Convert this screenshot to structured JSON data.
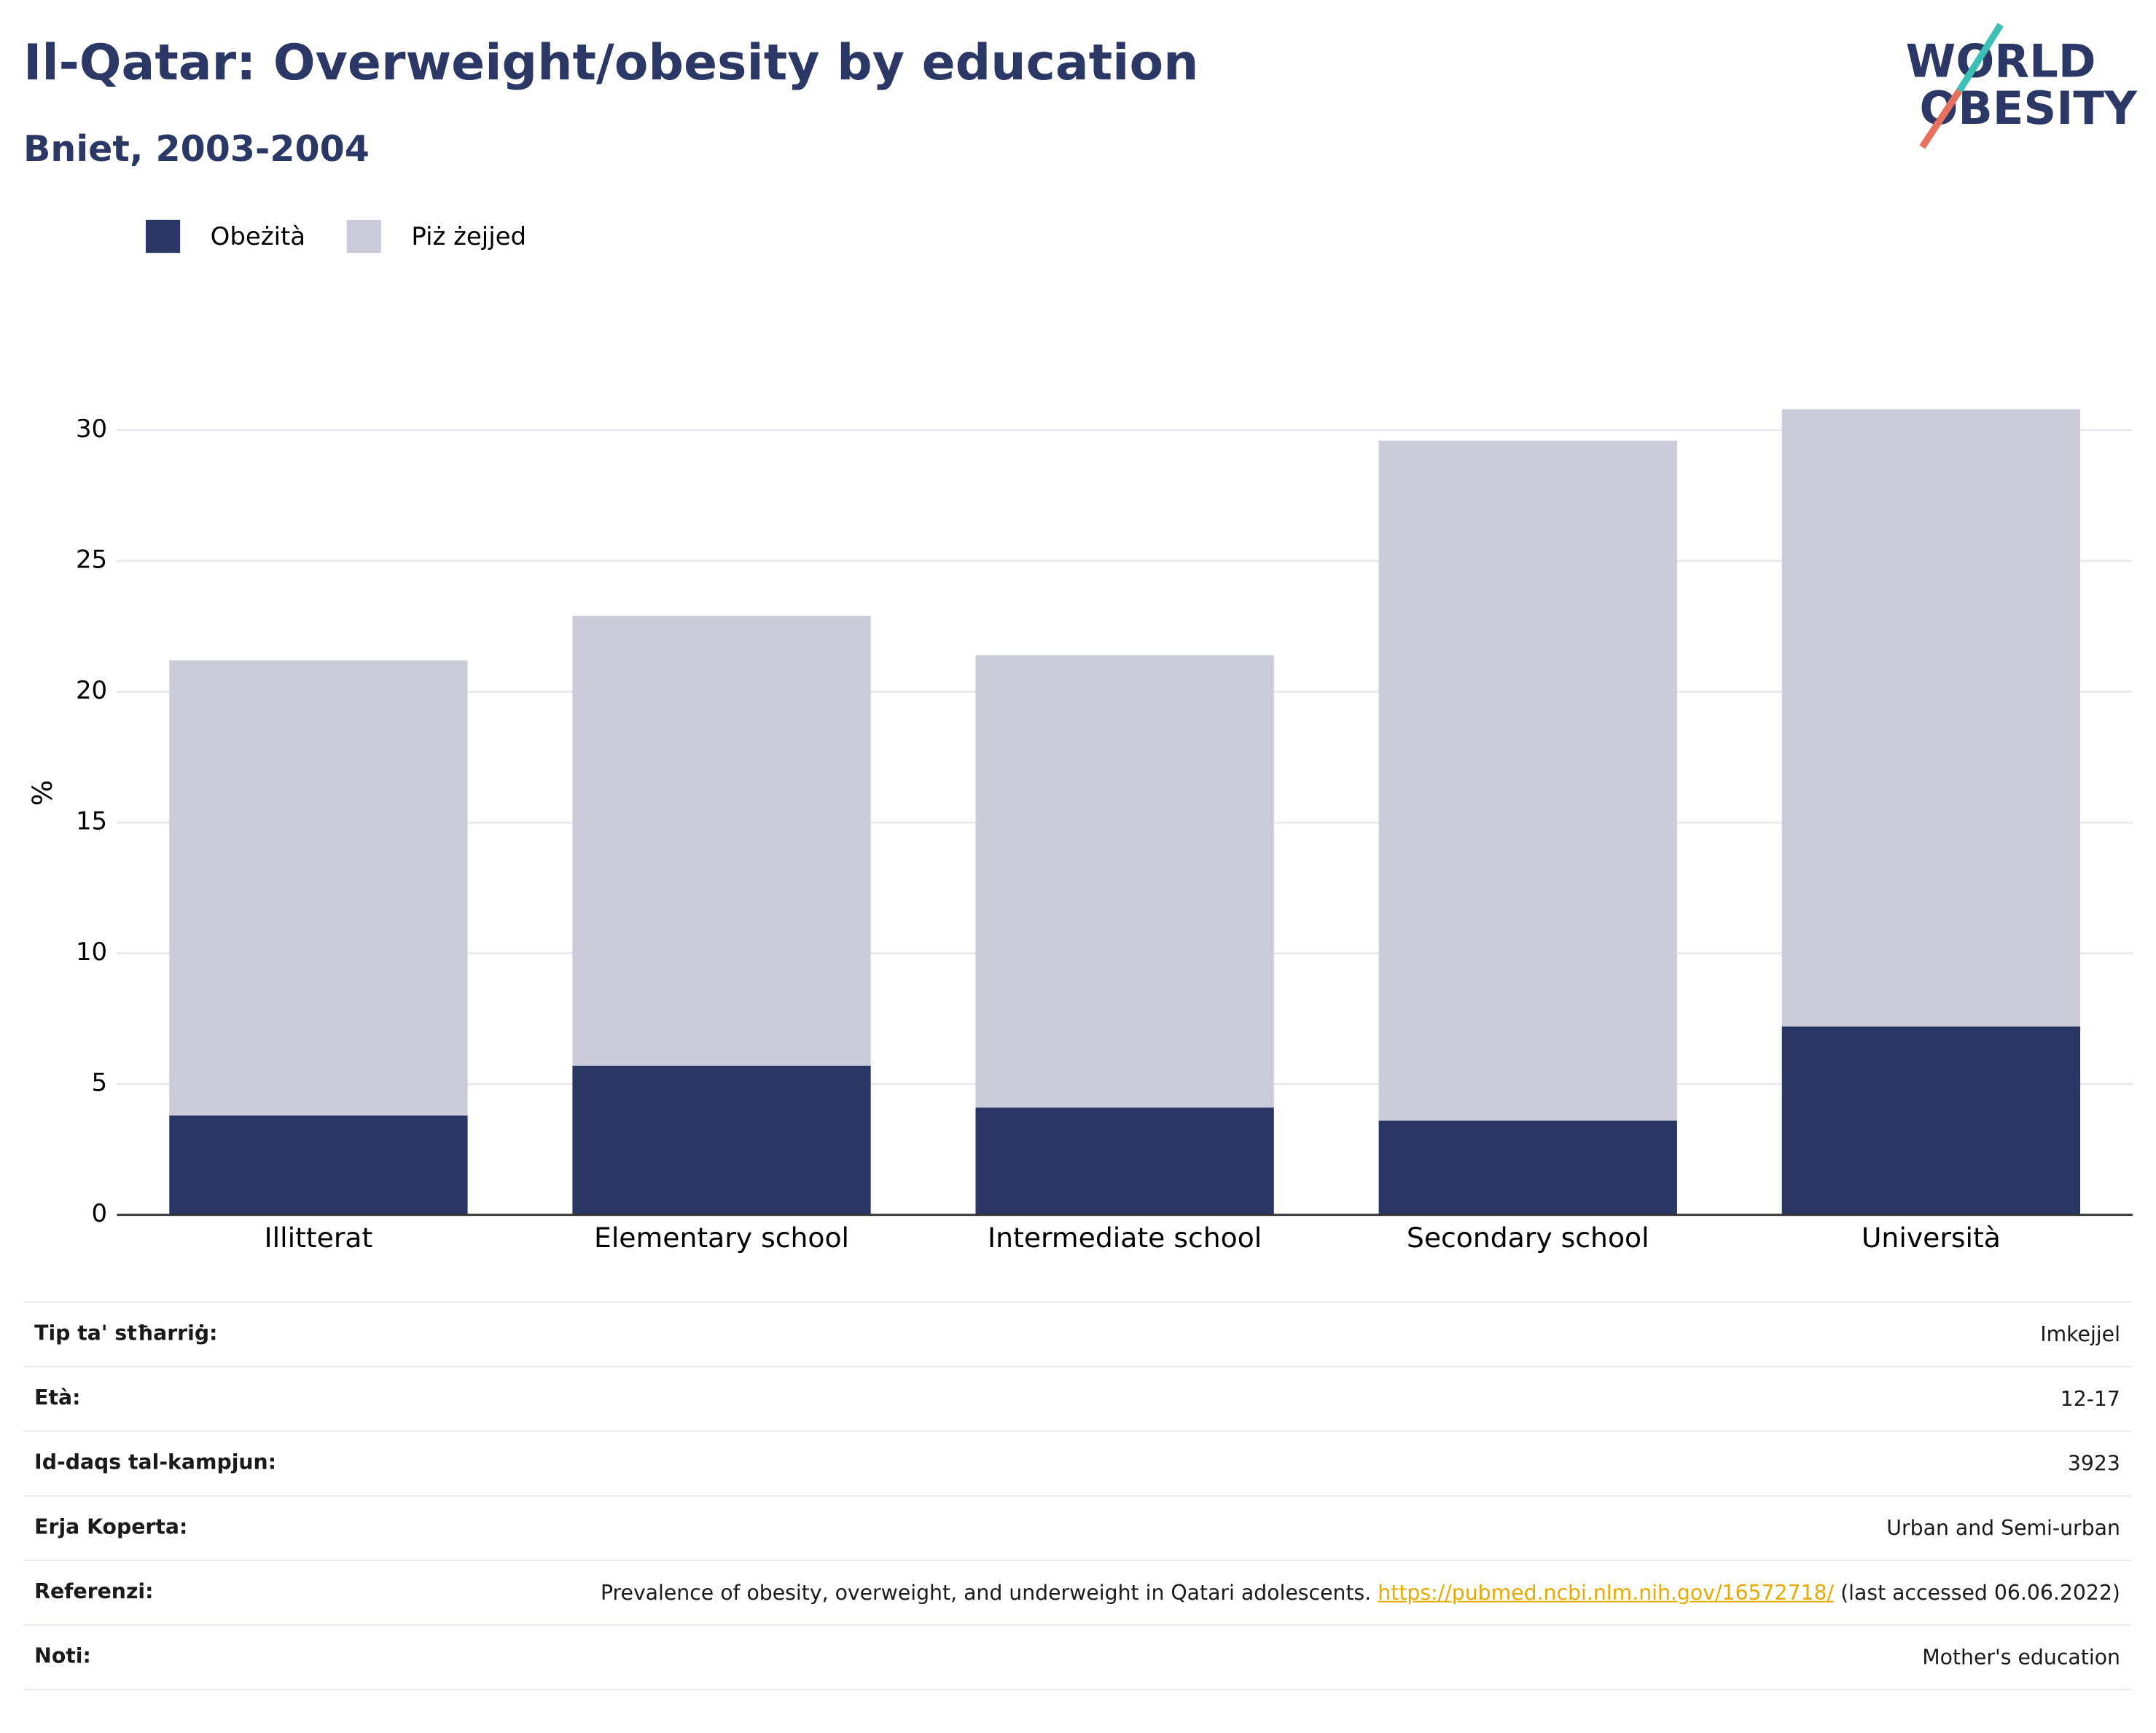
{
  "chart_data": {
    "type": "bar",
    "stacked": true,
    "title": "Il-Qatar: Overweight/obesity by education",
    "subtitle": "Bniet, 2003-2004",
    "ylabel": "%",
    "categories": [
      "Illitterat",
      "Elementary school",
      "Intermediate school",
      "Secondary school",
      "Università"
    ],
    "series": [
      {
        "name": "Obeżità",
        "color": "#2a3664",
        "values": [
          3.8,
          5.7,
          4.1,
          3.6,
          7.2
        ]
      },
      {
        "name": "Piż żejjed",
        "color": "#cacdd9",
        "values": [
          17.4,
          17.2,
          17.3,
          26.0,
          23.6
        ]
      }
    ],
    "ylim": [
      0,
      32
    ],
    "yticks": [
      0,
      5,
      10,
      15,
      20,
      25,
      30
    ],
    "grid": true,
    "legend": "top-left"
  },
  "logo": {
    "line1": "WORLD",
    "line2": "OBESITY"
  },
  "table": {
    "rows": [
      {
        "label": "Tip ta' stħarriġ:",
        "value": "Imkejjel"
      },
      {
        "label": "Età:",
        "value": "12-17"
      },
      {
        "label": "Id-daqs tal-kampjun:",
        "value": "3923"
      },
      {
        "label": "Erja Koperta:",
        "value": "Urban and Semi-urban"
      },
      {
        "label": "Referenzi:",
        "value": {
          "text": "Prevalence of obesity, overweight, and underweight in Qatari adolescents.",
          "url": "https://pubmed.ncbi.nlm.nih.gov/16572718/",
          "accessed": "(last accessed 06.06.2022)"
        }
      },
      {
        "label": "Noti:",
        "value": "Mother's education"
      }
    ]
  }
}
